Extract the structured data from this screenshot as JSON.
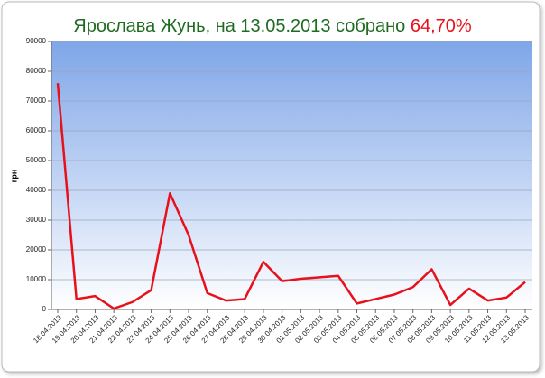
{
  "chart_data": {
    "type": "line",
    "title": "Ярослава Жунь, на 13.05.2013 собрано",
    "title_highlight": "64,70%",
    "y_label": "грн",
    "categories": [
      "18.04.2013",
      "19.04.2013",
      "20.04.2013",
      "21.04.2013",
      "22.04.2013",
      "23.04.2013",
      "24.04.2013",
      "25.04.2013",
      "26.04.2013",
      "27.04.2013",
      "28.04.2013",
      "29.04.2013",
      "30.04.2013",
      "01.05.2013",
      "02.05.2013",
      "03.05.2013",
      "04.05.2013",
      "05.05.2013",
      "06.05.2013",
      "07.05.2013",
      "08.05.2013",
      "09.05.2013",
      "10.05.2013",
      "11.05.2013",
      "12.05.2013",
      "13.05.2013"
    ],
    "values": [
      76000,
      3500,
      4500,
      300,
      2500,
      6500,
      39000,
      25000,
      5500,
      3000,
      3500,
      16000,
      9500,
      10300,
      10800,
      11300,
      2000,
      3500,
      5000,
      7500,
      13500,
      1500,
      7000,
      3000,
      4000,
      9200
    ],
    "color": "#e8101a",
    "ylim": [
      0,
      90000
    ],
    "yticks": [
      0,
      10000,
      20000,
      30000,
      40000,
      50000,
      60000,
      70000,
      80000,
      90000
    ],
    "grid": true
  }
}
